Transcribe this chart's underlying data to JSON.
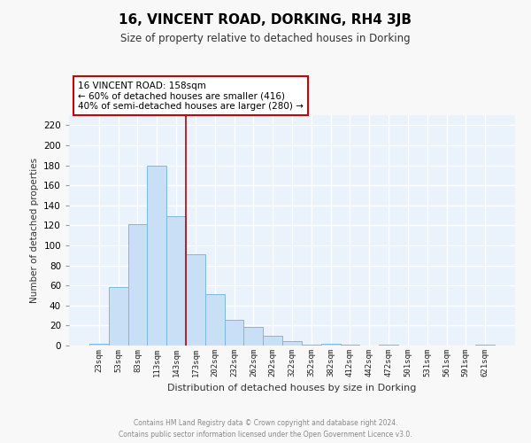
{
  "title": "16, VINCENT ROAD, DORKING, RH4 3JB",
  "subtitle": "Size of property relative to detached houses in Dorking",
  "xlabel": "Distribution of detached houses by size in Dorking",
  "ylabel": "Number of detached properties",
  "bar_labels": [
    "23sqm",
    "53sqm",
    "83sqm",
    "113sqm",
    "143sqm",
    "173sqm",
    "202sqm",
    "232sqm",
    "262sqm",
    "292sqm",
    "322sqm",
    "352sqm",
    "382sqm",
    "412sqm",
    "442sqm",
    "472sqm",
    "501sqm",
    "531sqm",
    "561sqm",
    "591sqm",
    "621sqm"
  ],
  "bar_values": [
    2,
    58,
    121,
    180,
    129,
    91,
    51,
    26,
    19,
    10,
    4,
    1,
    2,
    1,
    0,
    1,
    0,
    0,
    0,
    0,
    1
  ],
  "bar_color": "#c8dff5",
  "bar_edge_color": "#7db8e0",
  "ylim": [
    0,
    230
  ],
  "yticks": [
    0,
    20,
    40,
    60,
    80,
    100,
    120,
    140,
    160,
    180,
    200,
    220
  ],
  "vline_x": 4.5,
  "annotation_line1": "16 VINCENT ROAD: 158sqm",
  "annotation_line2": "← 60% of detached houses are smaller (416)",
  "annotation_line3": "40% of semi-detached houses are larger (280) →",
  "vline_color": "#bb0000",
  "annotation_border_color": "#cc0000",
  "footer_line1": "Contains HM Land Registry data © Crown copyright and database right 2024.",
  "footer_line2": "Contains public sector information licensed under the Open Government Licence v3.0.",
  "bg_color": "#eaf2fb",
  "grid_color": "#ffffff",
  "fig_bg_color": "#f8f8f8"
}
